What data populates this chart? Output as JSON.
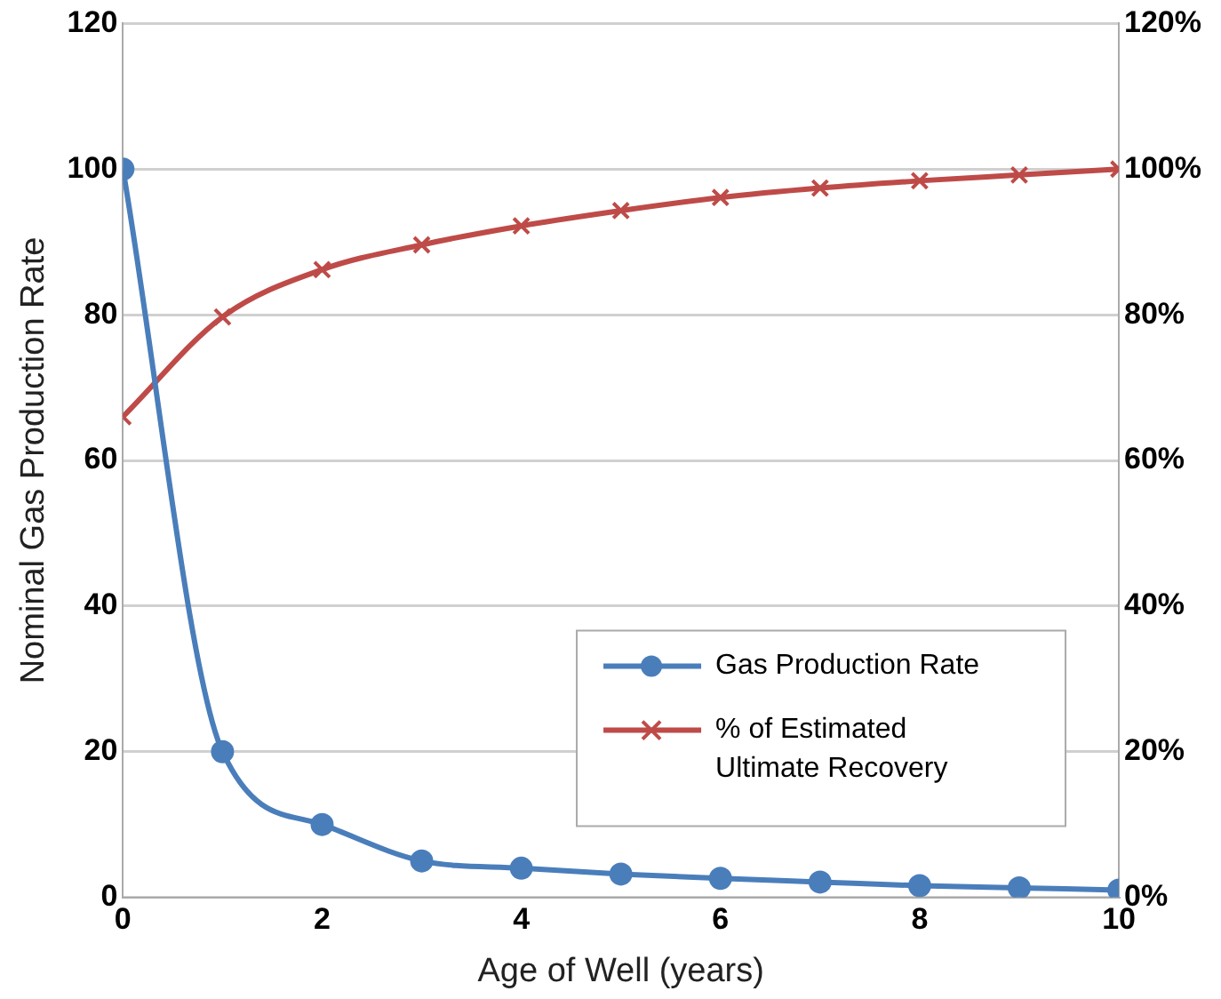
{
  "chart_data": {
    "type": "line",
    "xlabel": "Age of Well (years)",
    "ylabel": "Nominal Gas Production Rate",
    "x": [
      0,
      1,
      2,
      3,
      4,
      5,
      6,
      7,
      8,
      9,
      10
    ],
    "series": [
      {
        "name": "Gas Production Rate",
        "color": "#4a7ebb",
        "marker": "circle",
        "values": [
          100,
          20,
          10,
          5,
          4,
          3.2,
          2.6,
          2.1,
          1.6,
          1.3,
          1.0
        ]
      },
      {
        "name": "% of Estimated Ultimate Recovery",
        "color": "#be4b48",
        "marker": "cross",
        "axis": "y2",
        "values": [
          66,
          79.7,
          86.2,
          89.6,
          92.2,
          94.3,
          96.1,
          97.4,
          98.4,
          99.2,
          100
        ]
      }
    ],
    "xlim": [
      0,
      10
    ],
    "xticks": [
      0,
      2,
      4,
      6,
      8,
      10
    ],
    "ylim": [
      0,
      120
    ],
    "yticks": [
      0,
      20,
      40,
      60,
      80,
      100,
      120
    ],
    "y2lim": [
      0,
      120
    ],
    "y2ticks": [
      {
        "value": 0,
        "label": "0%"
      },
      {
        "value": 20,
        "label": "20%"
      },
      {
        "value": 40,
        "label": "40%"
      },
      {
        "value": 60,
        "label": "60%"
      },
      {
        "value": 80,
        "label": "80%"
      },
      {
        "value": 100,
        "label": "100%"
      },
      {
        "value": 120,
        "label": "120%"
      }
    ],
    "grid": "y",
    "legend": "right"
  }
}
